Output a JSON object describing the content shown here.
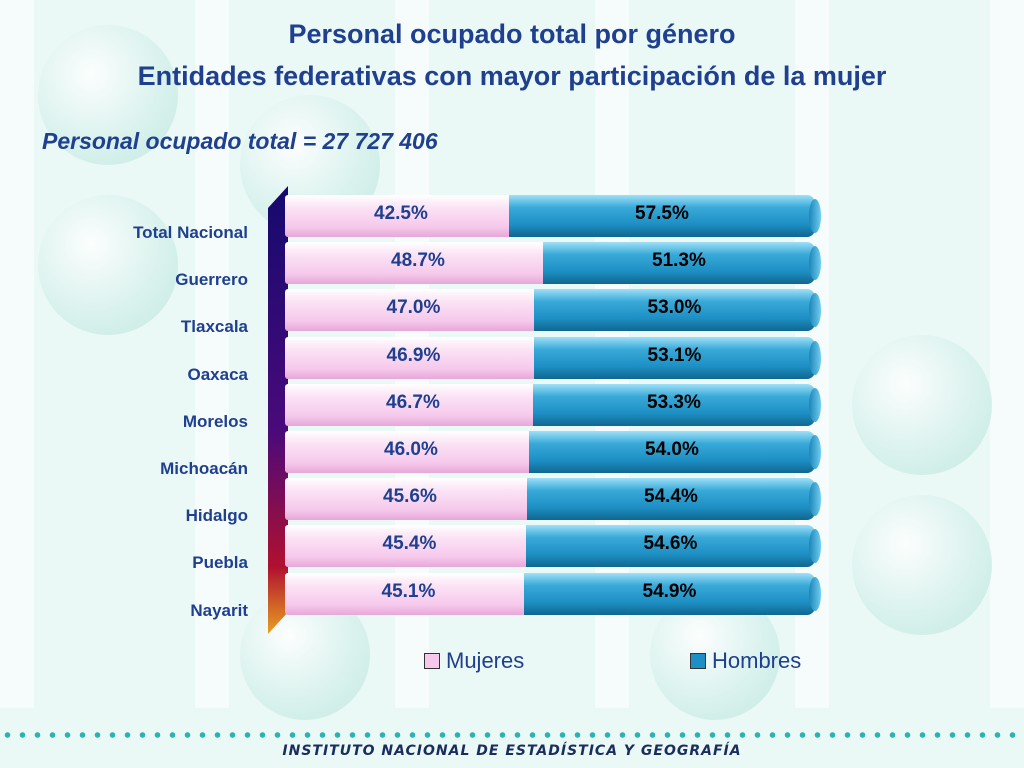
{
  "title_line1": "Personal ocupado total por género",
  "title_line2": "Entidades federativas con mayor participación de la mujer",
  "subtitle": "Personal ocupado total = 27 727 406",
  "footer": "INSTITUTO NACIONAL  DE ESTADÍSTICA Y GEOGRAFÍA",
  "colors": {
    "mujeres": "#f6c9ec",
    "hombres": "#1d8fc4",
    "title": "#1f3f8f"
  },
  "chart_data": {
    "type": "bar",
    "orientation": "horizontal",
    "stacked": "percent",
    "categories": [
      "Total Nacional",
      "Guerrero",
      "Tlaxcala",
      "Oaxaca",
      "Morelos",
      "Michoacán",
      "Hidalgo",
      "Puebla",
      "Nayarit"
    ],
    "series": [
      {
        "name": "Mujeres",
        "values": [
          42.5,
          48.7,
          47.0,
          46.9,
          46.7,
          46.0,
          45.6,
          45.4,
          45.1
        ],
        "labels": [
          "42.5%",
          "48.7%",
          "47.0%",
          "46.9%",
          "46.7%",
          "46.0%",
          "45.6%",
          "45.4%",
          "45.1%"
        ]
      },
      {
        "name": "Hombres",
        "values": [
          57.5,
          51.3,
          53.0,
          53.1,
          53.3,
          54.0,
          54.4,
          54.6,
          54.9
        ],
        "labels": [
          "57.5%",
          "51.3%",
          "53.0%",
          "53.1%",
          "53.3%",
          "54.0%",
          "54.4%",
          "54.6%",
          "54.9%"
        ]
      }
    ],
    "legend_position": "bottom"
  }
}
